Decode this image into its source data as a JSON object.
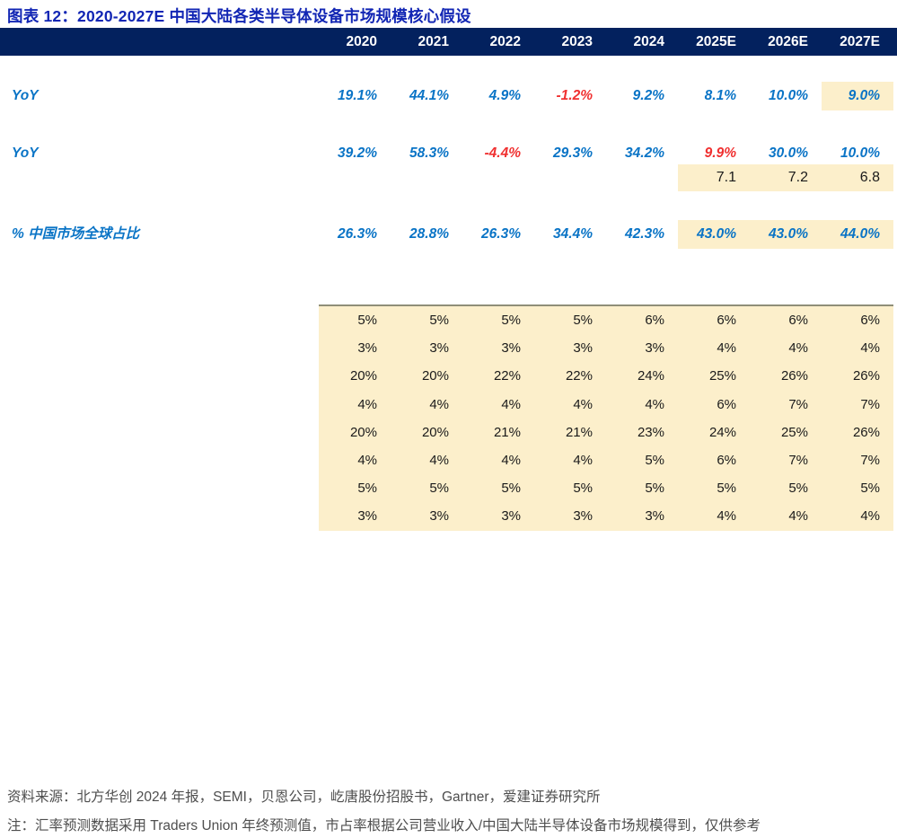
{
  "title": "图表 12：2020-2027E 中国大陆各类半导体设备市场规模核心假设",
  "colors": {
    "title_blue": "#1226b4",
    "header_navy": "#03215e",
    "value_blue": "#0a74c6",
    "negative_red": "#f03030",
    "highlight_cream": "#fcefcb",
    "footer_gray": "#4e4e4e"
  },
  "table": {
    "columns": [
      "2020",
      "2021",
      "2022",
      "2023",
      "2024",
      "2025E",
      "2026E",
      "2027E"
    ],
    "yoy_row_1": {
      "label": "YoY",
      "values": [
        "19.1%",
        "44.1%",
        "4.9%",
        "-1.2%",
        "9.2%",
        "8.1%",
        "10.0%",
        "9.0%"
      ]
    },
    "yoy_row_2": {
      "label": "YoY",
      "values": [
        "39.2%",
        "58.3%",
        "-4.4%",
        "29.3%",
        "34.2%",
        "9.9%",
        "30.0%",
        "10.0%"
      ]
    },
    "exchange_rate_row": {
      "values": [
        "7.1",
        "7.2",
        "6.8"
      ]
    },
    "china_share_row": {
      "label": "% 中国市场全球占比",
      "values": [
        "26.3%",
        "28.8%",
        "26.3%",
        "34.4%",
        "42.3%",
        "43.0%",
        "43.0%",
        "44.0%"
      ]
    },
    "assumption_block": {
      "rows": [
        [
          "5%",
          "5%",
          "5%",
          "5%",
          "6%",
          "6%",
          "6%",
          "6%"
        ],
        [
          "3%",
          "3%",
          "3%",
          "3%",
          "3%",
          "4%",
          "4%",
          "4%"
        ],
        [
          "20%",
          "20%",
          "22%",
          "22%",
          "24%",
          "25%",
          "26%",
          "26%"
        ],
        [
          "4%",
          "4%",
          "4%",
          "4%",
          "4%",
          "6%",
          "7%",
          "7%"
        ],
        [
          "20%",
          "20%",
          "21%",
          "21%",
          "23%",
          "24%",
          "25%",
          "26%"
        ],
        [
          "4%",
          "4%",
          "4%",
          "4%",
          "5%",
          "6%",
          "7%",
          "7%"
        ],
        [
          "5%",
          "5%",
          "5%",
          "5%",
          "5%",
          "5%",
          "5%",
          "5%"
        ],
        [
          "3%",
          "3%",
          "3%",
          "3%",
          "3%",
          "4%",
          "4%",
          "4%"
        ]
      ]
    }
  },
  "footer": {
    "source": "资料来源：北方华创 2024 年报，SEMI，贝恩公司，屹唐股份招股书，Gartner，爱建证券研究所",
    "note": "注：汇率预测数据采用 Traders Union 年终预测值，市占率根据公司营业收入/中国大陆半导体设备市场规模得到，仅供参考"
  }
}
